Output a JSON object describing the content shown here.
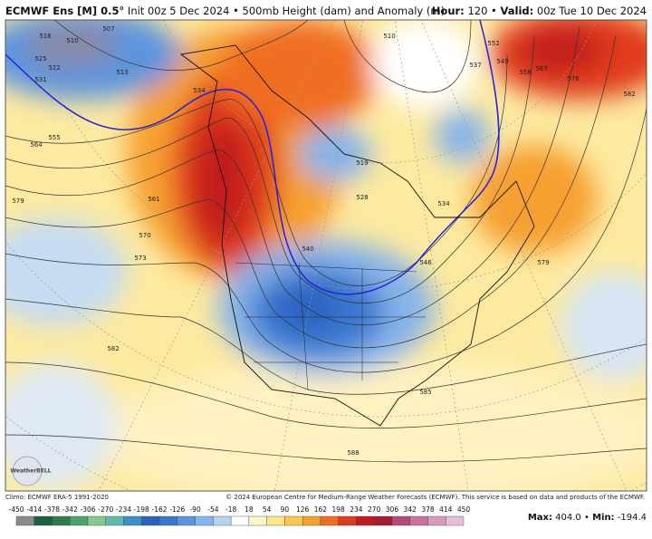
{
  "header": {
    "model": "ECMWF Ens [M] 0.5°",
    "init": "Init 00z 5 Dec 2024",
    "field": "500mb Height (dam) and Anomaly (m)",
    "hour_label": "Hour:",
    "hour": "120",
    "valid_label": "Valid:",
    "valid": "00z Tue 10 Dec 2024"
  },
  "footer": {
    "climo": "Climo: ECMWF ERA-5 1991-2020",
    "copyright": "© 2024 European Centre for Medium-Range Weather Forecasts (ECMWF). This service is based on data and products of the ECMWF.",
    "max_label": "Max:",
    "max": "404.0",
    "min_label": "Min:",
    "min": "-194.4",
    "logo": "WeatherBELL"
  },
  "colorbar": {
    "ticks": [
      -450,
      -414,
      -378,
      -342,
      -306,
      -270,
      -234,
      -198,
      -162,
      -126,
      -90,
      -54,
      -18,
      18,
      54,
      90,
      126,
      162,
      198,
      234,
      270,
      306,
      342,
      378,
      414,
      450
    ],
    "colors": [
      "#8a8a8a",
      "#1f5f3f",
      "#2e7d4f",
      "#4ea36a",
      "#86c98e",
      "#5fb9b0",
      "#3c8fc9",
      "#2a62c0",
      "#3a78d0",
      "#5b94de",
      "#86b4ea",
      "#b5d2f3",
      "#ffffff",
      "#fff6c8",
      "#fde68a",
      "#fbc84f",
      "#f6a032",
      "#f06e22",
      "#e03a1e",
      "#c11a1e",
      "#a21c36",
      "#b84a78",
      "#c872a0",
      "#d69cc0",
      "#e4c0d8"
    ]
  },
  "contour_labels": [
    "516",
    "510",
    "507",
    "513",
    "525",
    "522",
    "531",
    "555",
    "564",
    "579",
    "561",
    "570",
    "573",
    "582",
    "534",
    "540",
    "546",
    "528",
    "519",
    "534",
    "552",
    "549",
    "558",
    "567",
    "576",
    "582",
    "579",
    "585",
    "588",
    "537",
    "510"
  ]
}
